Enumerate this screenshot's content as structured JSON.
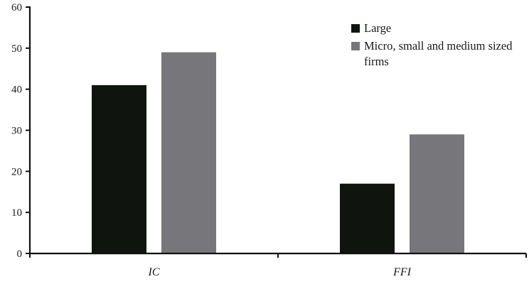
{
  "chart_data": {
    "type": "bar",
    "title": "",
    "xlabel": "",
    "ylabel": "",
    "categories": [
      "IC",
      "FFI"
    ],
    "series": [
      {
        "name": "Large",
        "color": "#0f140f",
        "values": [
          41,
          17
        ]
      },
      {
        "name": "Micro, small and medium sized firms",
        "color": "#77767a",
        "values": [
          49,
          29
        ]
      }
    ],
    "ylim": [
      0,
      60
    ],
    "yticks": [
      0,
      10,
      20,
      30,
      40,
      50,
      60
    ],
    "grid": false,
    "legend_position": "top-right"
  },
  "legend": {
    "items": [
      {
        "label": "Large",
        "color": "#0f140f"
      },
      {
        "label": "Micro, small and medium sized firms",
        "color": "#77767a"
      }
    ]
  }
}
